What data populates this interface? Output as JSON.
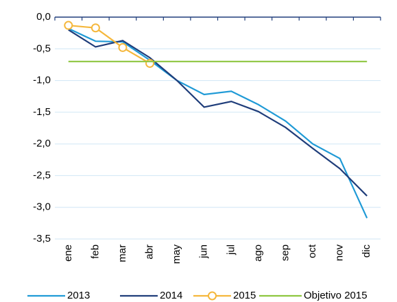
{
  "chart_data": {
    "type": "line",
    "categories": [
      "ene",
      "feb",
      "mar",
      "abr",
      "may",
      "jun",
      "jul",
      "ago",
      "sep",
      "oct",
      "nov",
      "dic"
    ],
    "series": [
      {
        "name": "2013",
        "color": "#1f9ad6",
        "values": [
          -0.18,
          -0.38,
          -0.39,
          -0.68,
          -1.0,
          -1.22,
          -1.17,
          -1.38,
          -1.64,
          -2.0,
          -2.23,
          -3.17
        ]
      },
      {
        "name": "2014",
        "color": "#1f3d7a",
        "values": [
          -0.2,
          -0.47,
          -0.37,
          -0.64,
          -1.0,
          -1.42,
          -1.33,
          -1.49,
          -1.74,
          -2.07,
          -2.39,
          -2.82
        ]
      },
      {
        "name": "2015",
        "color": "#f5b73b",
        "marker": "circle",
        "values": [
          -0.13,
          -0.17,
          -0.48,
          -0.73,
          null,
          null,
          null,
          null,
          null,
          null,
          null,
          null
        ]
      },
      {
        "name": "Objetivo 2015",
        "color": "#8dc63f",
        "values": [
          -0.7,
          -0.7,
          -0.7,
          -0.7,
          -0.7,
          -0.7,
          -0.7,
          -0.7,
          -0.7,
          -0.7,
          -0.7,
          -0.7
        ]
      }
    ],
    "ylim": [
      -3.5,
      0
    ],
    "yticks": [
      {
        "value": 0,
        "label": "0,0"
      },
      {
        "value": -0.5,
        "label": "-0,5"
      },
      {
        "value": -1,
        "label": "-1,0"
      },
      {
        "value": -1.5,
        "label": "-1,5"
      },
      {
        "value": -2,
        "label": "-2,0"
      },
      {
        "value": -2.5,
        "label": "-2,5"
      },
      {
        "value": -3,
        "label": "-3,0"
      },
      {
        "value": -3.5,
        "label": "-3,5"
      }
    ],
    "grid": true,
    "legend": "bottom"
  }
}
